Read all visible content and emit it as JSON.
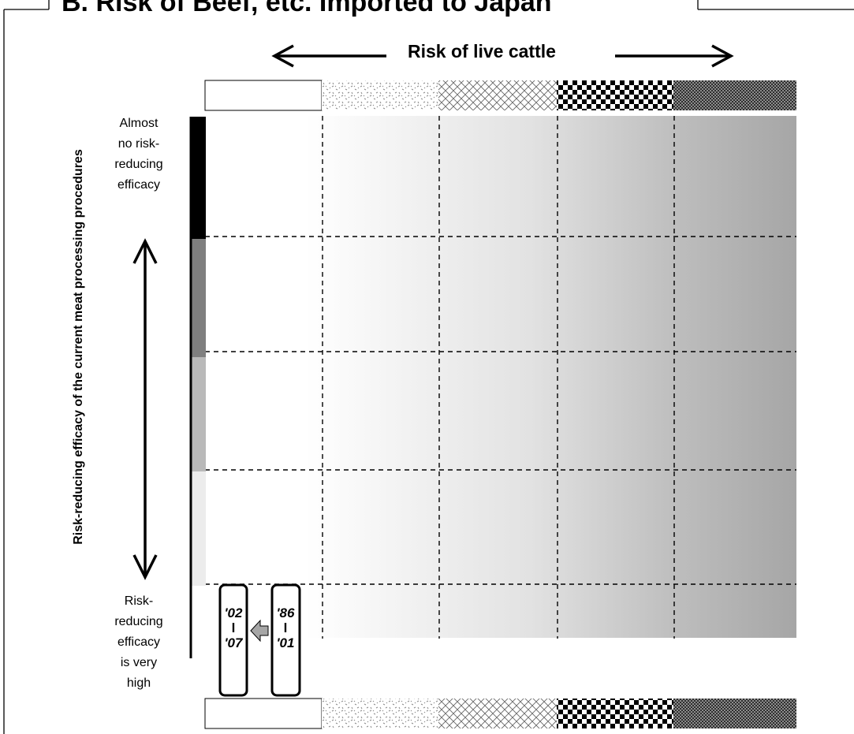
{
  "title": "B. Risk of Beef, etc. Imported to Japan",
  "top_axis": {
    "label": "Risk of live cattle"
  },
  "y_axis": {
    "title": "Risk-reducing efficacy of the current meat processing procedures",
    "top_label_lines": [
      "Almost",
      "no risk-",
      "reducing",
      "efficacy"
    ],
    "bottom_label_lines": [
      "Risk-",
      "reducing",
      "efficacy",
      "is very",
      "high"
    ]
  },
  "periods": [
    {
      "from": "'02",
      "sep": "l",
      "to": "'07"
    },
    {
      "from": "'86",
      "sep": "l",
      "to": "'01"
    }
  ],
  "colors": {
    "grid_line": "#000000",
    "gradient_start": "#ffffff",
    "gradient_end": "#a6a6a6",
    "vertical_bar": [
      "#000000",
      "#7f7f7f",
      "#b9b9b9",
      "#ececec"
    ],
    "shift_arrow": "#a6a6a6"
  }
}
